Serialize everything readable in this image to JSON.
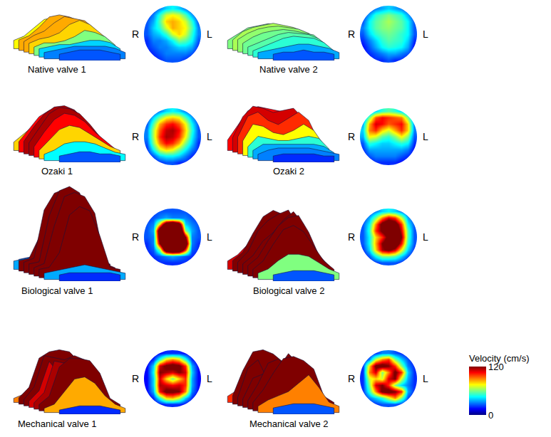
{
  "chart_data": {
    "type": "heatmap",
    "tick_labels": false,
    "colorbar": {
      "title": "Velocity (cm/s)",
      "range": [
        0,
        120
      ],
      "ticks": [
        0,
        120
      ]
    },
    "panels": [
      {
        "title": "Native valve 1",
        "left_label": "R",
        "right_label": "L",
        "cells": [
          [
            null,
            20,
            30,
            40,
            45,
            40,
            30,
            20,
            null
          ],
          [
            20,
            30,
            50,
            70,
            75,
            70,
            55,
            35,
            20
          ],
          [
            25,
            35,
            55,
            80,
            85,
            80,
            70,
            50,
            25
          ],
          [
            25,
            40,
            50,
            70,
            85,
            80,
            75,
            55,
            30
          ],
          [
            25,
            35,
            40,
            50,
            70,
            80,
            70,
            50,
            30
          ],
          [
            20,
            30,
            30,
            35,
            45,
            60,
            55,
            45,
            25
          ],
          [
            20,
            25,
            30,
            30,
            35,
            40,
            40,
            35,
            20
          ],
          [
            15,
            20,
            25,
            30,
            30,
            30,
            30,
            25,
            15
          ],
          [
            null,
            15,
            20,
            25,
            25,
            25,
            20,
            15,
            null
          ]
        ]
      },
      {
        "title": "Native valve 2",
        "left_label": "R",
        "right_label": "L",
        "cells": [
          [
            null,
            20,
            30,
            35,
            40,
            35,
            30,
            20,
            null
          ],
          [
            20,
            35,
            50,
            55,
            60,
            55,
            50,
            35,
            20
          ],
          [
            25,
            45,
            55,
            60,
            65,
            60,
            55,
            45,
            25
          ],
          [
            30,
            45,
            55,
            60,
            62,
            58,
            55,
            45,
            25
          ],
          [
            25,
            40,
            50,
            55,
            58,
            55,
            50,
            45,
            25
          ],
          [
            20,
            30,
            40,
            50,
            55,
            52,
            50,
            40,
            20
          ],
          [
            15,
            25,
            35,
            45,
            50,
            48,
            45,
            35,
            15
          ],
          [
            15,
            20,
            25,
            30,
            35,
            35,
            30,
            25,
            15
          ],
          [
            null,
            15,
            20,
            20,
            25,
            20,
            20,
            15,
            null
          ]
        ]
      },
      {
        "title": "Ozaki 1",
        "left_label": "R",
        "right_label": "L",
        "cells": [
          [
            null,
            20,
            30,
            40,
            45,
            40,
            30,
            20,
            null
          ],
          [
            20,
            40,
            60,
            75,
            80,
            75,
            55,
            35,
            20
          ],
          [
            25,
            55,
            85,
            100,
            105,
            95,
            75,
            45,
            25
          ],
          [
            30,
            65,
            95,
            112,
            115,
            105,
            80,
            50,
            25
          ],
          [
            30,
            65,
            100,
            115,
            112,
            100,
            75,
            45,
            25
          ],
          [
            25,
            60,
            90,
            105,
            100,
            85,
            60,
            40,
            20
          ],
          [
            20,
            45,
            70,
            80,
            75,
            60,
            45,
            30,
            20
          ],
          [
            15,
            25,
            40,
            45,
            45,
            40,
            30,
            20,
            15
          ],
          [
            null,
            15,
            20,
            25,
            25,
            20,
            20,
            15,
            null
          ]
        ]
      },
      {
        "title": "Ozaki 2",
        "left_label": "R",
        "right_label": "L",
        "cells": [
          [
            null,
            25,
            40,
            50,
            55,
            50,
            40,
            25,
            null
          ],
          [
            25,
            60,
            95,
            105,
            100,
            95,
            90,
            60,
            25
          ],
          [
            35,
            85,
            110,
            105,
            95,
            100,
            105,
            80,
            30
          ],
          [
            40,
            90,
            100,
            80,
            70,
            85,
            100,
            80,
            30
          ],
          [
            35,
            75,
            70,
            55,
            50,
            60,
            75,
            60,
            25
          ],
          [
            25,
            50,
            45,
            40,
            40,
            45,
            50,
            45,
            20
          ],
          [
            20,
            35,
            35,
            35,
            35,
            35,
            35,
            30,
            15
          ],
          [
            15,
            25,
            30,
            30,
            30,
            30,
            25,
            20,
            15
          ],
          [
            null,
            15,
            20,
            20,
            20,
            20,
            15,
            15,
            null
          ]
        ]
      },
      {
        "title": "Biological valve 1",
        "left_label": "R",
        "right_label": "L",
        "cells": [
          [
            null,
            20,
            25,
            25,
            25,
            25,
            25,
            20,
            null
          ],
          [
            20,
            25,
            30,
            35,
            30,
            30,
            30,
            25,
            20
          ],
          [
            25,
            30,
            80,
            150,
            170,
            140,
            40,
            30,
            25
          ],
          [
            25,
            35,
            150,
            190,
            200,
            185,
            60,
            35,
            25
          ],
          [
            25,
            30,
            140,
            200,
            210,
            195,
            120,
            30,
            25
          ],
          [
            20,
            30,
            120,
            190,
            200,
            190,
            150,
            30,
            20
          ],
          [
            20,
            25,
            60,
            150,
            170,
            160,
            100,
            25,
            20
          ],
          [
            15,
            20,
            25,
            30,
            35,
            30,
            25,
            20,
            15
          ],
          [
            null,
            15,
            20,
            20,
            20,
            20,
            20,
            15,
            null
          ]
        ]
      },
      {
        "title": "Biological valve 2",
        "left_label": "R",
        "right_label": "L",
        "cells": [
          [
            null,
            20,
            30,
            40,
            45,
            40,
            30,
            20,
            null
          ],
          [
            20,
            35,
            60,
            90,
            110,
            100,
            70,
            35,
            20
          ],
          [
            25,
            45,
            90,
            130,
            145,
            135,
            100,
            45,
            25
          ],
          [
            25,
            50,
            100,
            125,
            140,
            150,
            110,
            55,
            25
          ],
          [
            25,
            45,
            80,
            100,
            130,
            150,
            120,
            55,
            25
          ],
          [
            25,
            45,
            85,
            120,
            140,
            145,
            105,
            50,
            25
          ],
          [
            20,
            40,
            80,
            115,
            125,
            110,
            75,
            40,
            20
          ],
          [
            15,
            25,
            45,
            60,
            60,
            55,
            40,
            25,
            15
          ],
          [
            null,
            15,
            20,
            25,
            25,
            25,
            20,
            15,
            null
          ]
        ]
      },
      {
        "title": "Mechanical valve 1",
        "left_label": "R",
        "right_label": "L",
        "cells": [
          [
            null,
            10,
            15,
            20,
            20,
            20,
            15,
            10,
            null
          ],
          [
            10,
            20,
            50,
            80,
            90,
            80,
            50,
            20,
            10
          ],
          [
            15,
            40,
            110,
            125,
            130,
            125,
            100,
            35,
            15
          ],
          [
            15,
            45,
            120,
            115,
            110,
            120,
            110,
            40,
            15
          ],
          [
            15,
            40,
            110,
            80,
            60,
            80,
            100,
            35,
            15
          ],
          [
            15,
            40,
            115,
            110,
            105,
            110,
            100,
            35,
            15
          ],
          [
            15,
            35,
            105,
            125,
            125,
            120,
            90,
            30,
            15
          ],
          [
            10,
            20,
            50,
            80,
            85,
            70,
            40,
            20,
            10
          ],
          [
            null,
            10,
            15,
            20,
            20,
            20,
            15,
            10,
            null
          ]
        ]
      },
      {
        "title": "Mechanical valve 2",
        "left_label": "R",
        "right_label": "L",
        "cells": [
          [
            null,
            15,
            20,
            30,
            30,
            25,
            20,
            15,
            null
          ],
          [
            15,
            30,
            70,
            90,
            100,
            60,
            40,
            25,
            15
          ],
          [
            20,
            80,
            125,
            130,
            120,
            100,
            60,
            30,
            20
          ],
          [
            20,
            90,
            110,
            60,
            90,
            125,
            100,
            40,
            20
          ],
          [
            20,
            70,
            80,
            70,
            110,
            120,
            70,
            35,
            20
          ],
          [
            20,
            60,
            110,
            120,
            100,
            60,
            40,
            30,
            20
          ],
          [
            20,
            50,
            90,
            125,
            130,
            120,
            100,
            35,
            20
          ],
          [
            15,
            30,
            40,
            50,
            70,
            90,
            60,
            25,
            15
          ],
          [
            null,
            15,
            20,
            25,
            25,
            25,
            20,
            15,
            null
          ]
        ]
      }
    ]
  }
}
